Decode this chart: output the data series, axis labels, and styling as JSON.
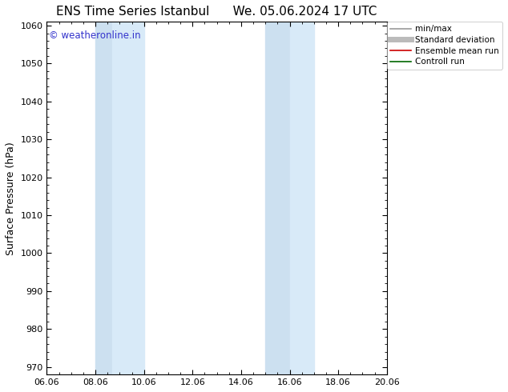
{
  "title_left": "ENS Time Series Istanbul",
  "title_right": "We. 05.06.2024 17 UTC",
  "ylabel": "Surface Pressure (hPa)",
  "ylim": [
    968,
    1061
  ],
  "yticks": [
    970,
    980,
    990,
    1000,
    1010,
    1020,
    1030,
    1040,
    1050,
    1060
  ],
  "xtick_positions": [
    0,
    2,
    4,
    6,
    8,
    10,
    12,
    14
  ],
  "xtick_labels": [
    "06.06",
    "08.06",
    "10.06",
    "12.06",
    "14.06",
    "16.06",
    "18.06",
    "20.06"
  ],
  "shaded_bands": [
    {
      "x_start": 2.0,
      "x_end": 2.7,
      "color": "#cce0f0"
    },
    {
      "x_start": 2.7,
      "x_end": 4.0,
      "color": "#d8eaf8"
    },
    {
      "x_start": 9.0,
      "x_end": 10.0,
      "color": "#cce0f0"
    },
    {
      "x_start": 10.0,
      "x_end": 11.0,
      "color": "#d8eaf8"
    }
  ],
  "watermark_text": "© weatheronline.in",
  "watermark_color": "#3333cc",
  "legend_entries": [
    {
      "label": "min/max",
      "color": "#999999",
      "lw": 1.2,
      "style": "solid"
    },
    {
      "label": "Standard deviation",
      "color": "#bbbbbb",
      "lw": 5,
      "style": "solid"
    },
    {
      "label": "Ensemble mean run",
      "color": "#cc0000",
      "lw": 1.2,
      "style": "solid"
    },
    {
      "label": "Controll run",
      "color": "#006600",
      "lw": 1.2,
      "style": "solid"
    }
  ],
  "background_color": "#ffffff",
  "spine_color": "#000000",
  "tick_fontsize": 8,
  "label_fontsize": 9,
  "title_fontsize": 11,
  "fig_width": 6.34,
  "fig_height": 4.9,
  "dpi": 100
}
